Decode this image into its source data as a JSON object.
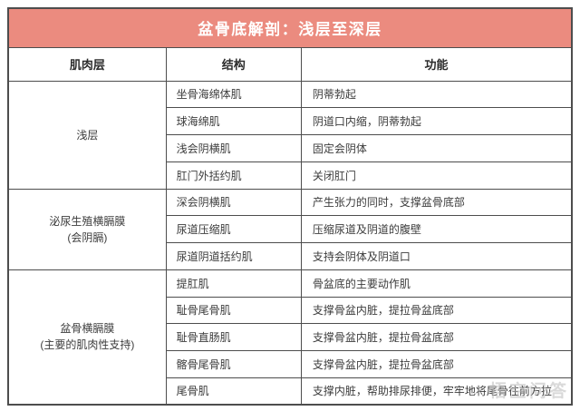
{
  "title": "盆骨底解剖：浅层至深层",
  "columns": [
    "肌肉层",
    "结构",
    "功能"
  ],
  "groups": [
    {
      "layer": "浅层",
      "layer_sub": "",
      "rows": [
        {
          "structure": "坐骨海绵体肌",
          "function": "阴蒂勃起"
        },
        {
          "structure": "球海绵肌",
          "function": "阴道口内缩，阴蒂勃起"
        },
        {
          "structure": "浅会阴横肌",
          "function": "固定会阴体"
        },
        {
          "structure": "肛门外括约肌",
          "function": "关闭肛门"
        }
      ]
    },
    {
      "layer": "泌尿生殖横膈膜",
      "layer_sub": "(会阴膈)",
      "rows": [
        {
          "structure": "深会阴横肌",
          "function": "产生张力的同时，支撑盆骨底部"
        },
        {
          "structure": "尿道压缩肌",
          "function": "压缩尿道及阴道的腹壁"
        },
        {
          "structure": "尿道阴道括约肌",
          "function": "支持会阴体及阴道口"
        }
      ]
    },
    {
      "layer": "盆骨横膈膜",
      "layer_sub": "(主要的肌肉性支持)",
      "rows": [
        {
          "structure": "提肛肌",
          "function": "骨盆底的主要动作肌"
        },
        {
          "structure": "耻骨尾骨肌",
          "function": "支撑骨盆内脏，提拉骨盆底部"
        },
        {
          "structure": "耻骨直肠肌",
          "function": "支撑骨盆内脏，提拉骨盆底部"
        },
        {
          "structure": "髂骨尾骨肌",
          "function": "支撑骨盆内脏，提拉骨盆底部"
        },
        {
          "structure": "尾骨肌",
          "function": "支撑内脏，帮助排尿排便，牢牢地将尾骨往前方拉"
        }
      ]
    }
  ],
  "watermark": "悟空问答",
  "colors": {
    "title_bg": "#EB8B7F",
    "title_text": "#FFFFFF",
    "border": "#4D4D4D",
    "body_text": "#3C3C3C",
    "watermark_text": "#B9B9B9"
  }
}
